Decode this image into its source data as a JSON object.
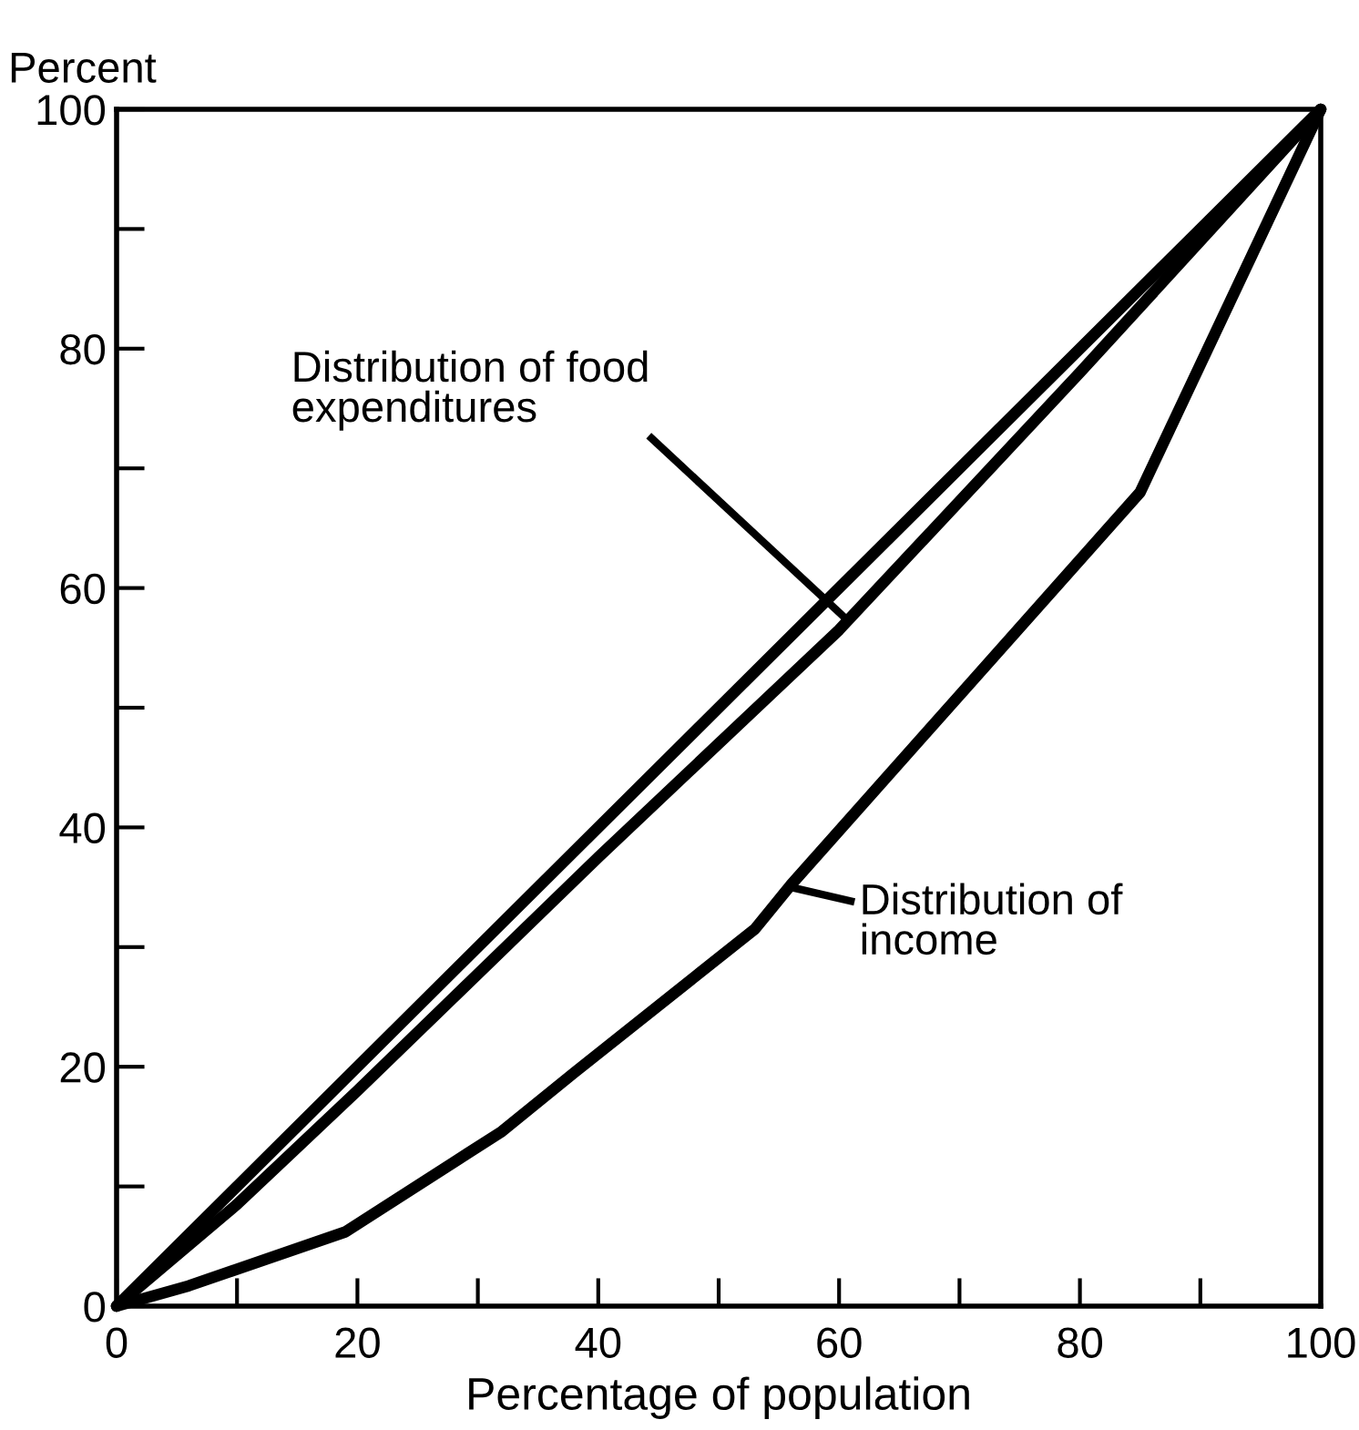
{
  "chart_data": {
    "type": "line",
    "xlabel": "Percentage of population",
    "ylabel": "Percent",
    "xlim": [
      0,
      100
    ],
    "ylim": [
      0,
      100
    ],
    "xticks": [
      0,
      {
        "value": 10,
        "label": null
      },
      20,
      {
        "value": 30,
        "label": null
      },
      40,
      {
        "value": 50,
        "label": null
      },
      60,
      {
        "value": 70,
        "label": null
      },
      80,
      {
        "value": 90,
        "label": null
      },
      100
    ],
    "yticks": [
      0,
      {
        "value": 10,
        "label": null
      },
      20,
      {
        "value": 30,
        "label": null
      },
      40,
      {
        "value": 50,
        "label": null
      },
      60,
      {
        "value": 70,
        "label": null
      },
      80,
      {
        "value": 90,
        "label": null
      },
      100
    ],
    "grid": false,
    "legend": false,
    "marker": "none",
    "line_style": "solid",
    "series": [
      {
        "color": "#000000",
        "x": [
          0,
          100
        ],
        "values": [
          0,
          100
        ]
      },
      {
        "color": "#000000",
        "x": [
          0,
          10,
          20,
          40,
          60,
          80,
          100
        ],
        "values": [
          0,
          8.5,
          18,
          37.5,
          56.5,
          78,
          100
        ]
      },
      {
        "color": "#000000",
        "x": [
          0,
          6,
          19,
          32,
          38,
          53,
          56,
          85,
          100
        ],
        "values": [
          0,
          1.7,
          6.2,
          14.6,
          19.5,
          31.5,
          35.2,
          68,
          100
        ]
      }
    ],
    "annotations": [
      {
        "text": "Distribution of food\nexpenditures",
        "x": 60.5,
        "y": 57.5
      },
      {
        "text": "Distribution of\nincome",
        "x": 56,
        "y": 35
      }
    ]
  }
}
